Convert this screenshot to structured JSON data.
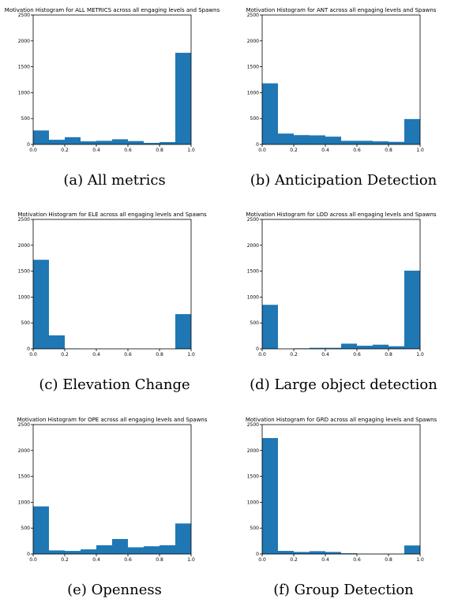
{
  "figure": {
    "captions": [
      "(a) All metrics",
      "(b) Anticipation Detection",
      "(c) Elevation Change",
      "(d) Large object detection",
      "(e) Openness",
      "(f) Group Detection"
    ]
  },
  "colors": {
    "bar": "#1f77b4",
    "axis": "#000000"
  },
  "chart_data": [
    {
      "type": "bar",
      "title": "Motivation Histogram for ALL METRICS across all engaging levels and Spawns",
      "bin_edges": [
        0.0,
        0.1,
        0.2,
        0.3,
        0.4,
        0.5,
        0.6,
        0.7,
        0.8,
        0.9,
        1.0
      ],
      "values": [
        270,
        90,
        140,
        60,
        70,
        100,
        65,
        30,
        45,
        1770
      ],
      "xlim": [
        0,
        1
      ],
      "ylim": [
        0,
        2500
      ],
      "xticks": [
        "0.0",
        "0.2",
        "0.4",
        "0.6",
        "0.8",
        "1.0"
      ],
      "yticks": [
        "0",
        "500",
        "1000",
        "1500",
        "2000",
        "2500"
      ],
      "grid": false
    },
    {
      "type": "bar",
      "title": "Motivation Histogram for ANT across all engaging levels and Spawns",
      "bin_edges": [
        0.0,
        0.1,
        0.2,
        0.3,
        0.4,
        0.5,
        0.6,
        0.7,
        0.8,
        0.9,
        1.0
      ],
      "values": [
        1180,
        210,
        180,
        175,
        150,
        70,
        70,
        60,
        50,
        490
      ],
      "xlim": [
        0,
        1
      ],
      "ylim": [
        0,
        2500
      ],
      "xticks": [
        "0.0",
        "0.2",
        "0.4",
        "0.6",
        "0.8",
        "1.0"
      ],
      "yticks": [
        "0",
        "500",
        "1000",
        "1500",
        "2000",
        "2500"
      ],
      "grid": false
    },
    {
      "type": "bar",
      "title": "Motivation Histogram for ELE across all engaging levels and Spawns",
      "bin_edges": [
        0.0,
        0.1,
        0.2,
        0.3,
        0.4,
        0.5,
        0.6,
        0.7,
        0.8,
        0.9,
        1.0
      ],
      "values": [
        1720,
        260,
        5,
        0,
        0,
        0,
        0,
        0,
        0,
        670
      ],
      "xlim": [
        0,
        1
      ],
      "ylim": [
        0,
        2500
      ],
      "xticks": [
        "0.0",
        "0.2",
        "0.4",
        "0.6",
        "0.8",
        "1.0"
      ],
      "yticks": [
        "0",
        "500",
        "1000",
        "1500",
        "2000",
        "2500"
      ],
      "grid": false
    },
    {
      "type": "bar",
      "title": "Motivation Histogram for LOD across all engaging levels and Spawns",
      "bin_edges": [
        0.0,
        0.1,
        0.2,
        0.3,
        0.4,
        0.5,
        0.6,
        0.7,
        0.8,
        0.9,
        1.0
      ],
      "values": [
        850,
        0,
        10,
        20,
        20,
        100,
        60,
        80,
        50,
        1510
      ],
      "xlim": [
        0,
        1
      ],
      "ylim": [
        0,
        2500
      ],
      "xticks": [
        "0.0",
        "0.2",
        "0.4",
        "0.6",
        "0.8",
        "1.0"
      ],
      "yticks": [
        "0",
        "500",
        "1000",
        "1500",
        "2000",
        "2500"
      ],
      "grid": false
    },
    {
      "type": "bar",
      "title": "Motivation Histogram for OPE across all engaging levels and Spawns",
      "bin_edges": [
        0.0,
        0.1,
        0.2,
        0.3,
        0.4,
        0.5,
        0.6,
        0.7,
        0.8,
        0.9,
        1.0
      ],
      "values": [
        920,
        70,
        60,
        90,
        170,
        290,
        130,
        150,
        170,
        590
      ],
      "xlim": [
        0,
        1
      ],
      "ylim": [
        0,
        2500
      ],
      "xticks": [
        "0.0",
        "0.2",
        "0.4",
        "0.6",
        "0.8",
        "1.0"
      ],
      "yticks": [
        "0",
        "500",
        "1000",
        "1500",
        "2000",
        "2500"
      ],
      "grid": false
    },
    {
      "type": "bar",
      "title": "Motivation Histogram for GRD across all engaging levels and Spawns",
      "bin_edges": [
        0.0,
        0.1,
        0.2,
        0.3,
        0.4,
        0.5,
        0.6,
        0.7,
        0.8,
        0.9,
        1.0
      ],
      "values": [
        2240,
        60,
        40,
        55,
        40,
        15,
        5,
        5,
        5,
        165
      ],
      "xlim": [
        0,
        1
      ],
      "ylim": [
        0,
        2500
      ],
      "xticks": [
        "0.0",
        "0.2",
        "0.4",
        "0.6",
        "0.8",
        "1.0"
      ],
      "yticks": [
        "0",
        "500",
        "1000",
        "1500",
        "2000",
        "2500"
      ],
      "grid": false
    }
  ]
}
